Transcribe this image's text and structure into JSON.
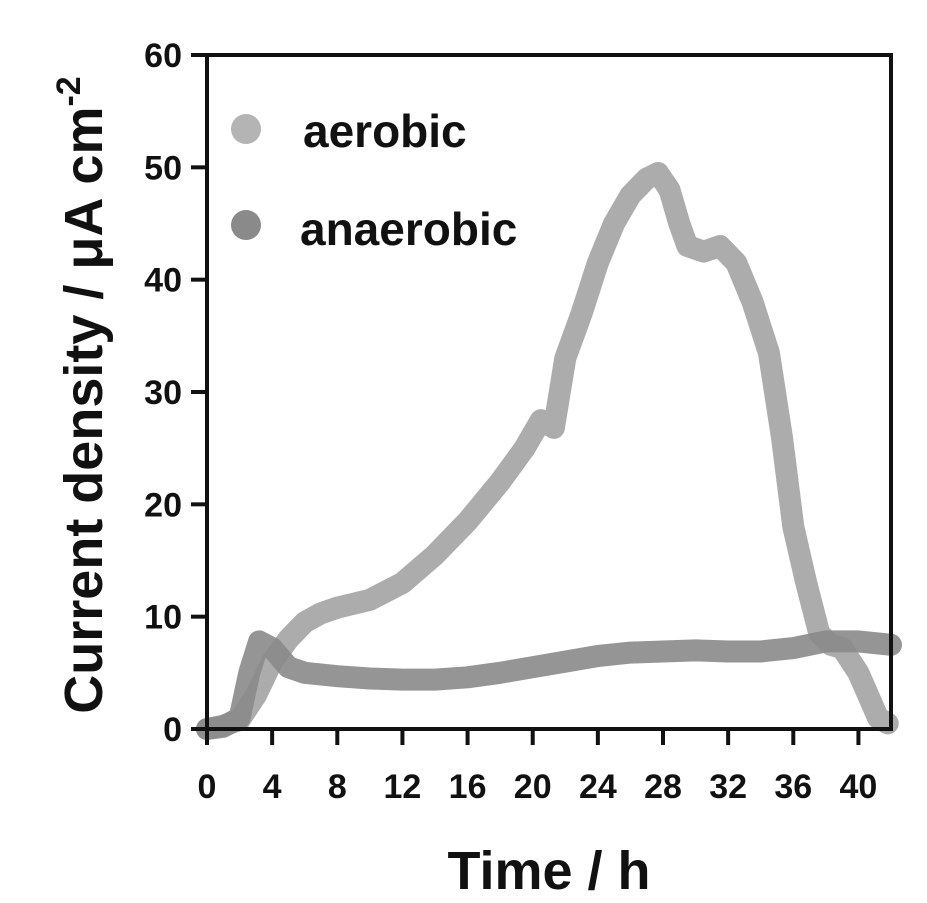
{
  "chart_data": {
    "type": "line",
    "xlabel": "Time / h",
    "ylabel": "Current density / μA cm",
    "ylabel_superscript": "-2",
    "xlim": [
      0,
      42
    ],
    "ylim": [
      0,
      60
    ],
    "xticks": [
      0,
      4,
      8,
      12,
      16,
      20,
      24,
      28,
      32,
      36,
      40
    ],
    "yticks": [
      0,
      10,
      20,
      30,
      40,
      50,
      60
    ],
    "grid": false,
    "legend_position": "top-left",
    "series": [
      {
        "name": "aerobic",
        "color": "#9e9e9e",
        "points": [
          [
            0,
            0
          ],
          [
            1,
            0.3
          ],
          [
            2,
            0.8
          ],
          [
            3,
            3
          ],
          [
            4,
            6
          ],
          [
            5,
            8
          ],
          [
            6,
            9.5
          ],
          [
            7,
            10.3
          ],
          [
            8,
            10.8
          ],
          [
            10,
            11.5
          ],
          [
            12,
            13
          ],
          [
            14,
            15.5
          ],
          [
            16,
            18.5
          ],
          [
            18,
            22
          ],
          [
            19.5,
            25
          ],
          [
            20.5,
            27.5
          ],
          [
            21.3,
            26.8
          ],
          [
            22,
            33
          ],
          [
            23,
            37
          ],
          [
            24,
            41.5
          ],
          [
            25,
            45
          ],
          [
            26,
            47.5
          ],
          [
            27,
            49
          ],
          [
            27.7,
            49.5
          ],
          [
            28.4,
            48
          ],
          [
            29,
            45
          ],
          [
            29.5,
            43
          ],
          [
            30.5,
            42.5
          ],
          [
            31.5,
            43
          ],
          [
            32.5,
            41.5
          ],
          [
            33.5,
            38
          ],
          [
            34.5,
            33.5
          ],
          [
            35.3,
            26
          ],
          [
            36,
            18
          ],
          [
            36.8,
            13
          ],
          [
            37.6,
            8.5
          ],
          [
            38.3,
            7.5
          ],
          [
            39,
            7.2
          ],
          [
            40,
            5
          ],
          [
            40.6,
            3
          ],
          [
            41.2,
            1
          ],
          [
            41.8,
            0.5
          ]
        ]
      },
      {
        "name": "anaerobic",
        "color": "#8a8a8a",
        "points": [
          [
            0,
            0
          ],
          [
            1,
            0.2
          ],
          [
            2,
            1
          ],
          [
            2.6,
            5
          ],
          [
            3.2,
            7.8
          ],
          [
            4,
            7.2
          ],
          [
            5,
            5.5
          ],
          [
            6,
            5
          ],
          [
            8,
            4.7
          ],
          [
            10,
            4.5
          ],
          [
            12,
            4.4
          ],
          [
            14,
            4.4
          ],
          [
            16,
            4.6
          ],
          [
            18,
            5
          ],
          [
            20,
            5.5
          ],
          [
            22,
            6
          ],
          [
            24,
            6.5
          ],
          [
            26,
            6.8
          ],
          [
            28,
            6.9
          ],
          [
            30,
            7
          ],
          [
            32,
            6.9
          ],
          [
            34,
            6.9
          ],
          [
            36,
            7.2
          ],
          [
            38,
            7.8
          ],
          [
            40,
            7.8
          ],
          [
            42,
            7.5
          ]
        ]
      }
    ]
  }
}
